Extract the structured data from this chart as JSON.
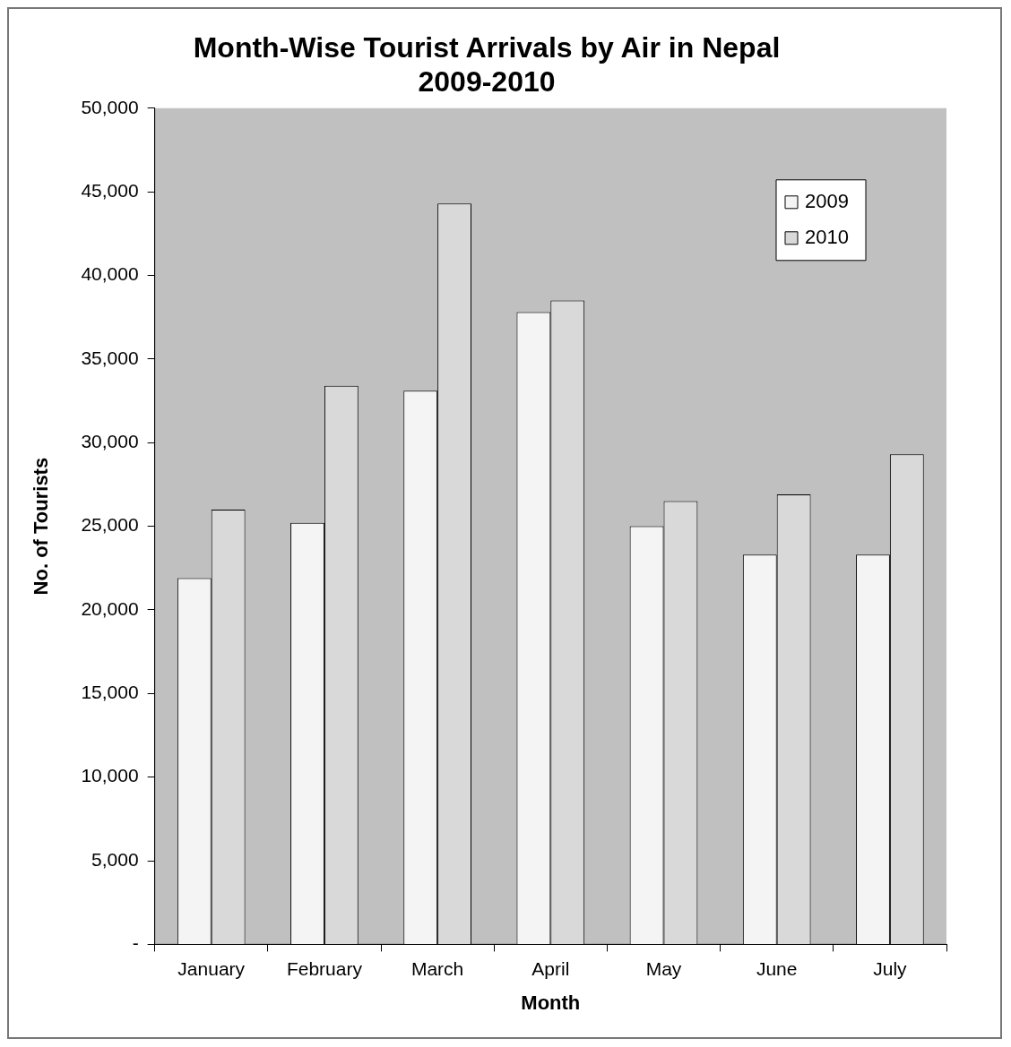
{
  "chart_data": {
    "type": "bar",
    "title": "Month-Wise Tourist Arrivals by Air in Nepal\n2009-2010",
    "xlabel": "Month",
    "ylabel": "No. of Tourists",
    "categories": [
      "January",
      "February",
      "March",
      "April",
      "May",
      "June",
      "July"
    ],
    "series": [
      {
        "name": "2009",
        "color": "#f4f4f4",
        "values": [
          21900,
          25200,
          33100,
          37800,
          25000,
          23300,
          23300
        ]
      },
      {
        "name": "2010",
        "color": "#d9d9d9",
        "values": [
          26000,
          33400,
          44300,
          38500,
          26500,
          26900,
          29300
        ]
      }
    ],
    "ylim": [
      0,
      50000
    ],
    "yticks": [
      {
        "value": 0,
        "label": "-"
      },
      {
        "value": 5000,
        "label": "5,000"
      },
      {
        "value": 10000,
        "label": "10,000"
      },
      {
        "value": 15000,
        "label": "15,000"
      },
      {
        "value": 20000,
        "label": "20,000"
      },
      {
        "value": 25000,
        "label": "25,000"
      },
      {
        "value": 30000,
        "label": "30,000"
      },
      {
        "value": 35000,
        "label": "35,000"
      },
      {
        "value": 40000,
        "label": "40,000"
      },
      {
        "value": 45000,
        "label": "45,000"
      },
      {
        "value": 50000,
        "label": "50,000"
      }
    ],
    "grid": false,
    "legend": "top right"
  }
}
